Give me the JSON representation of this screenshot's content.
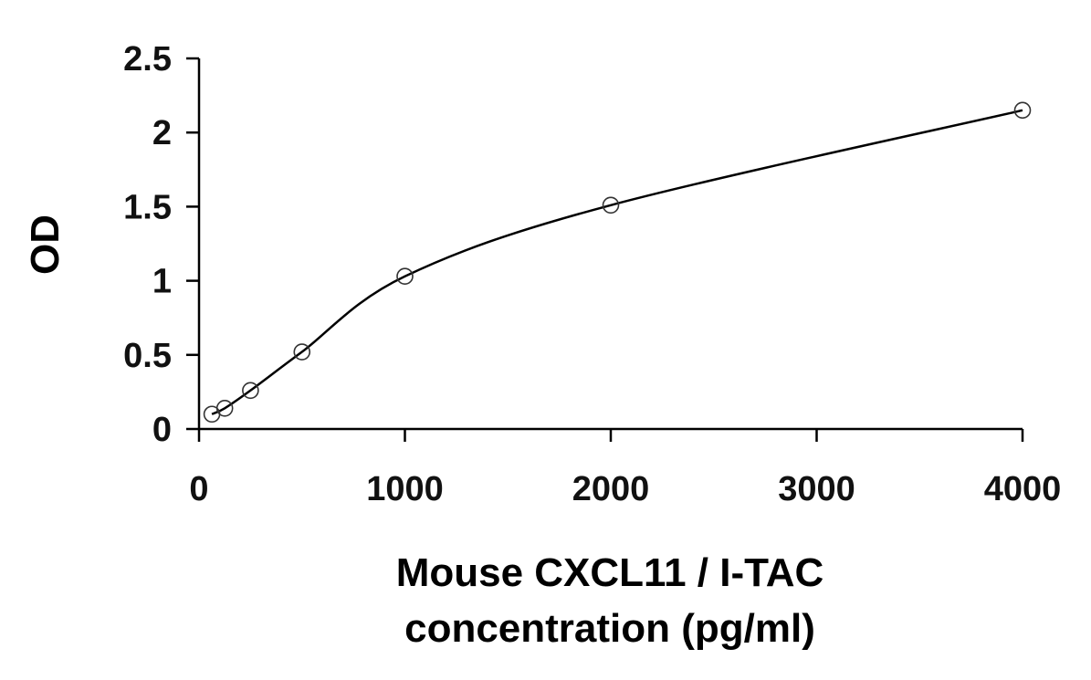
{
  "chart_data": {
    "type": "scatter",
    "title": "",
    "xlabel_lines": [
      "Mouse CXCL11 / I-TAC",
      "concentration (pg/ml)"
    ],
    "ylabel": "OD",
    "xlim": [
      0,
      4000
    ],
    "ylim": [
      0,
      2.5
    ],
    "x_ticks": [
      0,
      1000,
      2000,
      3000,
      4000
    ],
    "x_tick_labels": [
      "0",
      "1000",
      "2000",
      "3000",
      "4000"
    ],
    "y_ticks": [
      0,
      0.5,
      1,
      1.5,
      2,
      2.5
    ],
    "y_tick_labels": [
      "0",
      "0.5",
      "1",
      "1.5",
      "2",
      "2.5"
    ],
    "grid": false,
    "legend": "none",
    "series": [
      {
        "marker": "open-circle",
        "line": "smooth-fit",
        "x": [
          62.5,
          125,
          250,
          500,
          1000,
          2000,
          4000
        ],
        "y": [
          0.1,
          0.14,
          0.26,
          0.52,
          1.03,
          1.51,
          2.15
        ]
      }
    ]
  }
}
